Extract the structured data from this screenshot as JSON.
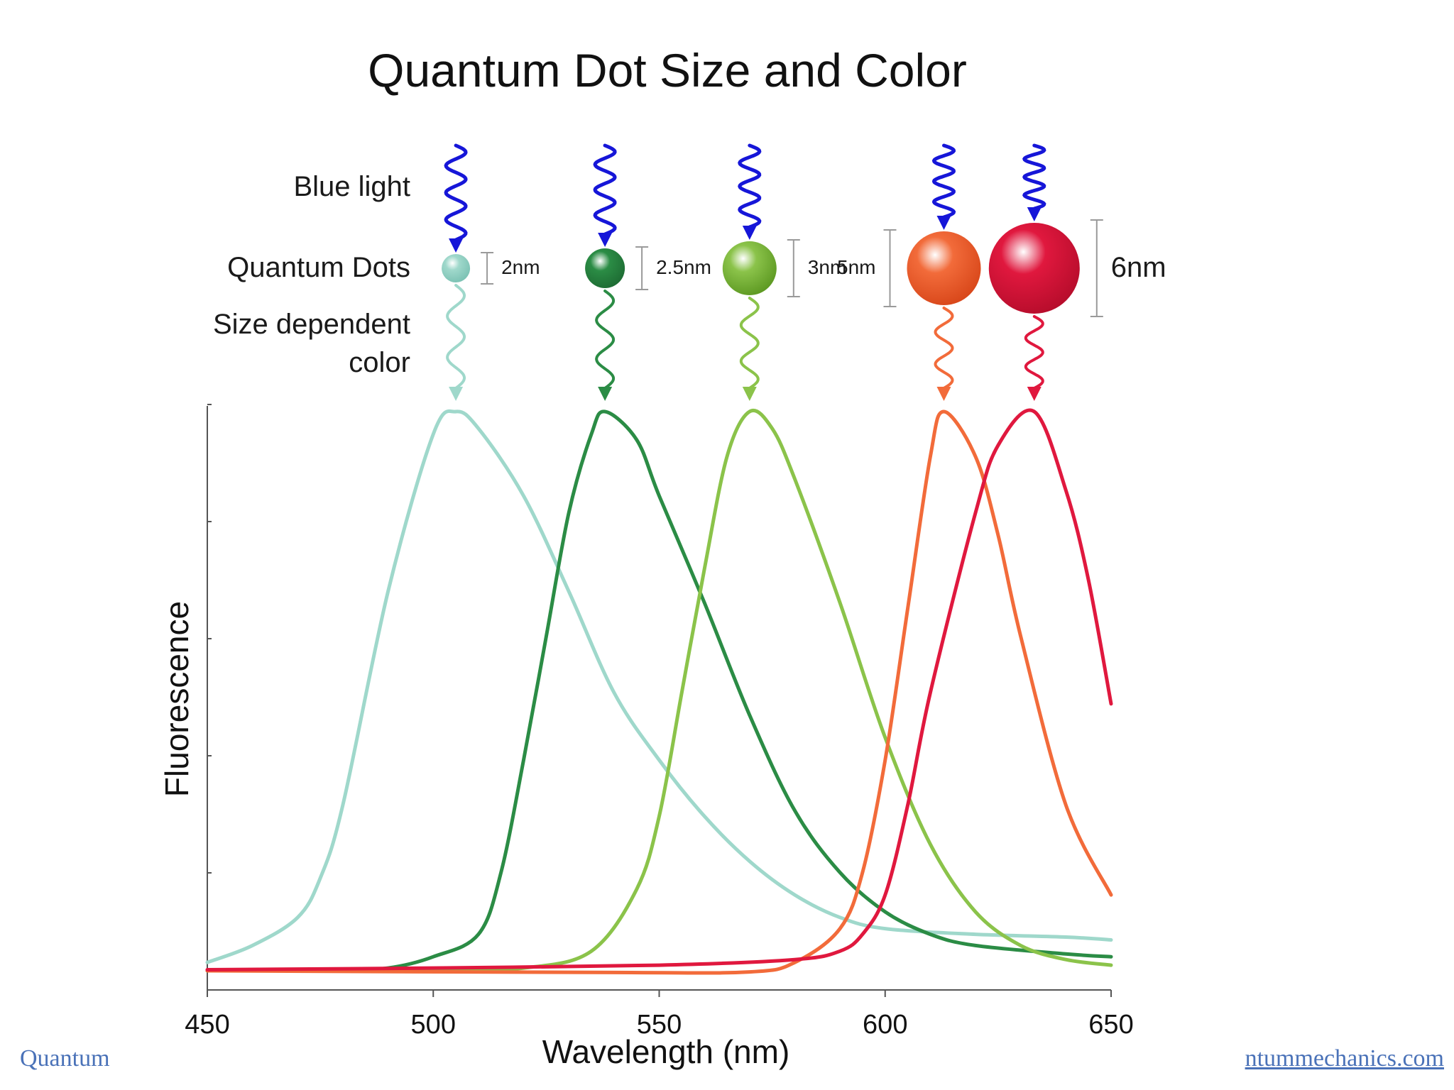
{
  "chart_data": {
    "type": "line",
    "title": "Quantum Dot Size and Color",
    "xlabel": "Wavelength (nm)",
    "ylabel": "Fluorescence",
    "xlim": [
      450,
      650
    ],
    "ylim": [
      0,
      1
    ],
    "x_ticks": [
      "450",
      "500",
      "550",
      "600",
      "650"
    ],
    "grid": false,
    "row_labels": {
      "blue_light": "Blue light",
      "quantum_dots": "Quantum Dots",
      "size_line1": "Size dependent",
      "size_line2": "color"
    },
    "series": [
      {
        "size_label": "2nm",
        "color": "#9fd8cb",
        "dot_dark": "#7cc2b4",
        "peak": 505,
        "points": [
          [
            450,
            0.02
          ],
          [
            460,
            0.05
          ],
          [
            470,
            0.1
          ],
          [
            475,
            0.17
          ],
          [
            480,
            0.3
          ],
          [
            490,
            0.68
          ],
          [
            500,
            0.96
          ],
          [
            505,
            1.0
          ],
          [
            510,
            0.97
          ],
          [
            520,
            0.85
          ],
          [
            530,
            0.68
          ],
          [
            540,
            0.5
          ],
          [
            550,
            0.38
          ],
          [
            560,
            0.28
          ],
          [
            570,
            0.2
          ],
          [
            580,
            0.14
          ],
          [
            590,
            0.1
          ],
          [
            600,
            0.08
          ],
          [
            620,
            0.07
          ],
          [
            640,
            0.065
          ],
          [
            650,
            0.06
          ]
        ]
      },
      {
        "size_label": "2.5nm",
        "color": "#2b8c45",
        "dot_dark": "#1e6d34",
        "peak": 538,
        "points": [
          [
            450,
            0.005
          ],
          [
            480,
            0.008
          ],
          [
            490,
            0.01
          ],
          [
            500,
            0.03
          ],
          [
            510,
            0.07
          ],
          [
            515,
            0.18
          ],
          [
            520,
            0.38
          ],
          [
            525,
            0.6
          ],
          [
            530,
            0.82
          ],
          [
            535,
            0.96
          ],
          [
            538,
            1.0
          ],
          [
            545,
            0.95
          ],
          [
            550,
            0.85
          ],
          [
            560,
            0.66
          ],
          [
            570,
            0.46
          ],
          [
            580,
            0.29
          ],
          [
            590,
            0.18
          ],
          [
            600,
            0.11
          ],
          [
            610,
            0.07
          ],
          [
            620,
            0.05
          ],
          [
            640,
            0.035
          ],
          [
            650,
            0.03
          ]
        ]
      },
      {
        "size_label": "3nm",
        "color": "#8bc34a",
        "dot_dark": "#5e9a23",
        "peak": 570,
        "points": [
          [
            450,
            0.005
          ],
          [
            500,
            0.007
          ],
          [
            520,
            0.01
          ],
          [
            535,
            0.04
          ],
          [
            545,
            0.15
          ],
          [
            550,
            0.28
          ],
          [
            555,
            0.5
          ],
          [
            560,
            0.72
          ],
          [
            565,
            0.92
          ],
          [
            570,
            1.0
          ],
          [
            575,
            0.97
          ],
          [
            580,
            0.88
          ],
          [
            590,
            0.66
          ],
          [
            600,
            0.42
          ],
          [
            610,
            0.23
          ],
          [
            620,
            0.11
          ],
          [
            630,
            0.05
          ],
          [
            640,
            0.025
          ],
          [
            650,
            0.015
          ]
        ]
      },
      {
        "size_label": "5nm",
        "color": "#f26b3a",
        "dot_dark": "#d9481b",
        "peak": 613,
        "points": [
          [
            450,
            0.005
          ],
          [
            540,
            0.002
          ],
          [
            570,
            0.003
          ],
          [
            580,
            0.02
          ],
          [
            590,
            0.08
          ],
          [
            595,
            0.18
          ],
          [
            600,
            0.38
          ],
          [
            605,
            0.65
          ],
          [
            610,
            0.92
          ],
          [
            613,
            1.0
          ],
          [
            620,
            0.92
          ],
          [
            625,
            0.78
          ],
          [
            630,
            0.6
          ],
          [
            640,
            0.3
          ],
          [
            650,
            0.14
          ]
        ]
      },
      {
        "size_label": "6nm",
        "color": "#e0183e",
        "dot_dark": "#b80d2c",
        "peak": 633,
        "points": [
          [
            450,
            0.007
          ],
          [
            500,
            0.01
          ],
          [
            550,
            0.015
          ],
          [
            580,
            0.025
          ],
          [
            590,
            0.04
          ],
          [
            595,
            0.07
          ],
          [
            600,
            0.14
          ],
          [
            605,
            0.3
          ],
          [
            610,
            0.5
          ],
          [
            620,
            0.82
          ],
          [
            625,
            0.94
          ],
          [
            633,
            1.0
          ],
          [
            640,
            0.86
          ],
          [
            645,
            0.7
          ],
          [
            650,
            0.48
          ]
        ]
      }
    ]
  },
  "excitation_color": "#1616d8",
  "footer": {
    "left_text": "Quantum",
    "right_text": "ntummechanics.com",
    "link_color": "#4a72b8"
  }
}
